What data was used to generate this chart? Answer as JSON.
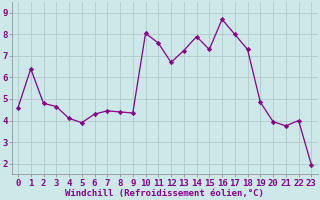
{
  "x": [
    0,
    1,
    2,
    3,
    4,
    5,
    6,
    7,
    8,
    9,
    10,
    11,
    12,
    13,
    14,
    15,
    16,
    17,
    18,
    19,
    20,
    21,
    22,
    23
  ],
  "y": [
    4.6,
    6.4,
    4.8,
    4.65,
    4.1,
    3.9,
    4.3,
    4.45,
    4.4,
    4.35,
    8.05,
    7.6,
    6.7,
    7.25,
    7.9,
    7.3,
    8.7,
    8.0,
    7.3,
    4.85,
    3.95,
    3.75,
    4.0,
    1.95
  ],
  "line_color": "#880088",
  "marker": "D",
  "marker_size": 2.2,
  "bg_color": "#cce8e8",
  "grid_color": "#b0c8c8",
  "xlabel": "Windchill (Refroidissement éolien,°C)",
  "xlabel_fontsize": 6.5,
  "tick_fontsize": 6.5,
  "ylim": [
    1.5,
    9.5
  ],
  "xlim": [
    -0.5,
    23.5
  ],
  "yticks": [
    2,
    3,
    4,
    5,
    6,
    7,
    8,
    9
  ],
  "xticks": [
    0,
    1,
    2,
    3,
    4,
    5,
    6,
    7,
    8,
    9,
    10,
    11,
    12,
    13,
    14,
    15,
    16,
    17,
    18,
    19,
    20,
    21,
    22,
    23
  ],
  "spine_color": "#888888",
  "tick_color": "#888888"
}
